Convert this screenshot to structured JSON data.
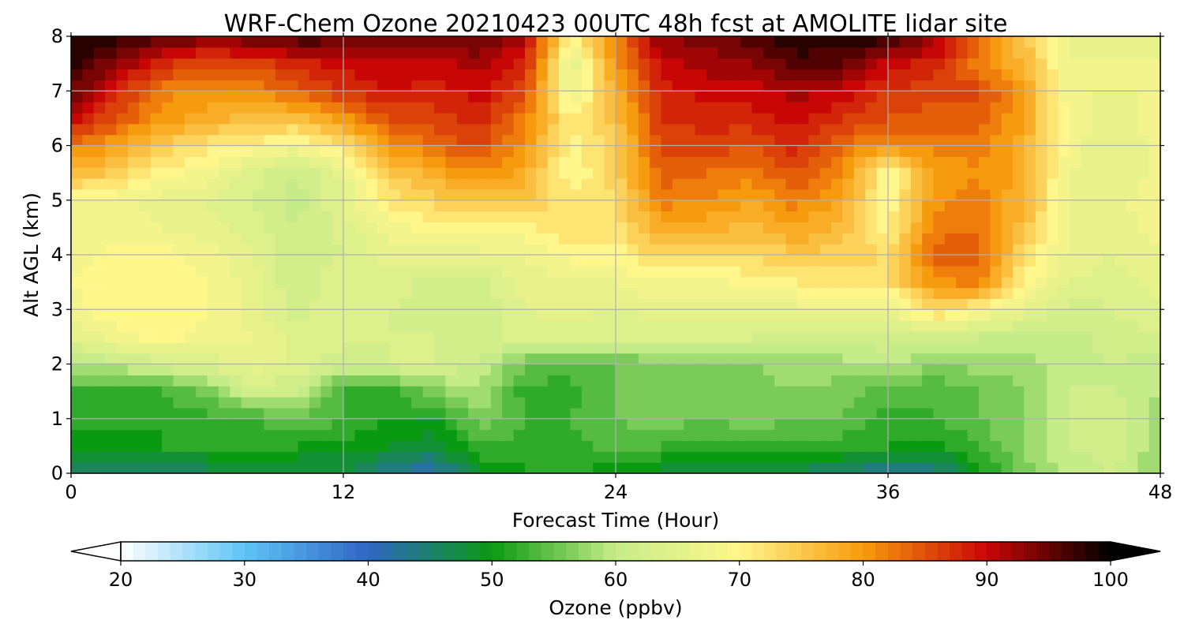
{
  "chart_data": {
    "type": "heatmap",
    "title": "WRF-Chem Ozone  20210423 00UTC 48h fcst at AMOLITE lidar site",
    "xlabel": "Forecast Time (Hour)",
    "ylabel": "Alt AGL (km)",
    "xlim": [
      0,
      48
    ],
    "ylim": [
      0,
      8
    ],
    "x_ticks": [
      "0",
      "12",
      "24",
      "36",
      "48"
    ],
    "y_ticks": [
      "0",
      "1",
      "2",
      "3",
      "4",
      "5",
      "6",
      "7",
      "8"
    ],
    "grid": true,
    "colorbar": {
      "label": "Ozone  (ppbv)",
      "range": [
        20,
        100
      ],
      "ticks": [
        "20",
        "30",
        "40",
        "50",
        "60",
        "70",
        "80",
        "90",
        "100"
      ],
      "extend": "both",
      "colors": [
        "#ffffff",
        "#5ec4f5",
        "#2f66c4",
        "#0a9a12",
        "#c6ec8a",
        "#fff68c",
        "#f79b0e",
        "#c90606",
        "#000000"
      ]
    },
    "x": [
      0,
      2,
      4,
      6,
      8,
      10,
      12,
      14,
      16,
      18,
      20,
      22,
      24,
      26,
      28,
      30,
      32,
      34,
      36,
      38,
      40,
      42,
      44,
      46,
      48
    ],
    "y": [
      0,
      0.5,
      1,
      1.5,
      2,
      2.5,
      3,
      3.5,
      4,
      4.5,
      5,
      5.5,
      6,
      6.5,
      7,
      7.5,
      8
    ],
    "z": [
      [
        45,
        46,
        45,
        46,
        46,
        46,
        47,
        43,
        41,
        48,
        51,
        51,
        50,
        48,
        48,
        48,
        46,
        45,
        42,
        43,
        50,
        56,
        60,
        61,
        56
      ],
      [
        50,
        50,
        51,
        51,
        51,
        51,
        50,
        49,
        47,
        53,
        52,
        52,
        54,
        53,
        52,
        53,
        52,
        52,
        51,
        50,
        53,
        57,
        61,
        62,
        58
      ],
      [
        52,
        52,
        51,
        52,
        53,
        55,
        53,
        51,
        51,
        56,
        53,
        53,
        55,
        56,
        55,
        56,
        55,
        55,
        52,
        53,
        55,
        57,
        61,
        62,
        58
      ],
      [
        53,
        52,
        53,
        56,
        62,
        61,
        52,
        52,
        56,
        59,
        52,
        52,
        55,
        56,
        56,
        56,
        57,
        56,
        54,
        53,
        55,
        57,
        61,
        61,
        59
      ],
      [
        58,
        60,
        62,
        64,
        66,
        65,
        61,
        63,
        63,
        61,
        55,
        54,
        55,
        56,
        57,
        57,
        58,
        58,
        60,
        57,
        58,
        58,
        60,
        61,
        60
      ],
      [
        65,
        68,
        70,
        68,
        67,
        64,
        64,
        63,
        63,
        62,
        64,
        63,
        63,
        63,
        63,
        63,
        62,
        62,
        62,
        61,
        61,
        60,
        60,
        62,
        63
      ],
      [
        68,
        71,
        71,
        69,
        66,
        62,
        65,
        63,
        62,
        61,
        65,
        66,
        65,
        66,
        66,
        66,
        66,
        67,
        66,
        74,
        70,
        66,
        62,
        63,
        65
      ],
      [
        69,
        70,
        71,
        69,
        66,
        61,
        65,
        64,
        62,
        62,
        66,
        66,
        67,
        69,
        68,
        70,
        71,
        71,
        72,
        80,
        82,
        70,
        65,
        64,
        66
      ],
      [
        68,
        70,
        70,
        68,
        65,
        61,
        63,
        66,
        66,
        66,
        67,
        70,
        70,
        74,
        74,
        73,
        75,
        74,
        73,
        84,
        84,
        73,
        66,
        65,
        67
      ],
      [
        67,
        68,
        67,
        66,
        64,
        61,
        64,
        68,
        70,
        71,
        70,
        73,
        72,
        78,
        78,
        76,
        79,
        76,
        70,
        82,
        83,
        76,
        67,
        66,
        68
      ],
      [
        69,
        68,
        66,
        65,
        63,
        60,
        65,
        72,
        74,
        76,
        75,
        72,
        73,
        82,
        81,
        79,
        82,
        78,
        69,
        80,
        82,
        77,
        67,
        66,
        69
      ],
      [
        77,
        74,
        70,
        68,
        64,
        61,
        66,
        75,
        78,
        81,
        78,
        69,
        74,
        84,
        83,
        82,
        85,
        81,
        69,
        79,
        81,
        78,
        67,
        65,
        68
      ],
      [
        82,
        79,
        75,
        72,
        70,
        68,
        72,
        80,
        83,
        86,
        80,
        70,
        74,
        86,
        86,
        85,
        88,
        83,
        80,
        82,
        82,
        78,
        68,
        65,
        68
      ],
      [
        90,
        85,
        80,
        78,
        76,
        76,
        80,
        85,
        86,
        88,
        82,
        71,
        76,
        87,
        88,
        88,
        90,
        87,
        85,
        84,
        84,
        79,
        68,
        66,
        68
      ],
      [
        95,
        88,
        82,
        80,
        81,
        84,
        87,
        89,
        88,
        90,
        86,
        66,
        78,
        88,
        90,
        90,
        92,
        90,
        87,
        86,
        86,
        79,
        67,
        67,
        67
      ],
      [
        98,
        93,
        88,
        85,
        86,
        88,
        90,
        91,
        90,
        92,
        88,
        65,
        80,
        90,
        92,
        93,
        96,
        95,
        90,
        88,
        82,
        77,
        67,
        67,
        67
      ],
      [
        99,
        98,
        96,
        94,
        95,
        97,
        96,
        94,
        94,
        95,
        92,
        70,
        82,
        93,
        94,
        96,
        99,
        99,
        98,
        93,
        82,
        75,
        66,
        66,
        66
      ]
    ]
  }
}
